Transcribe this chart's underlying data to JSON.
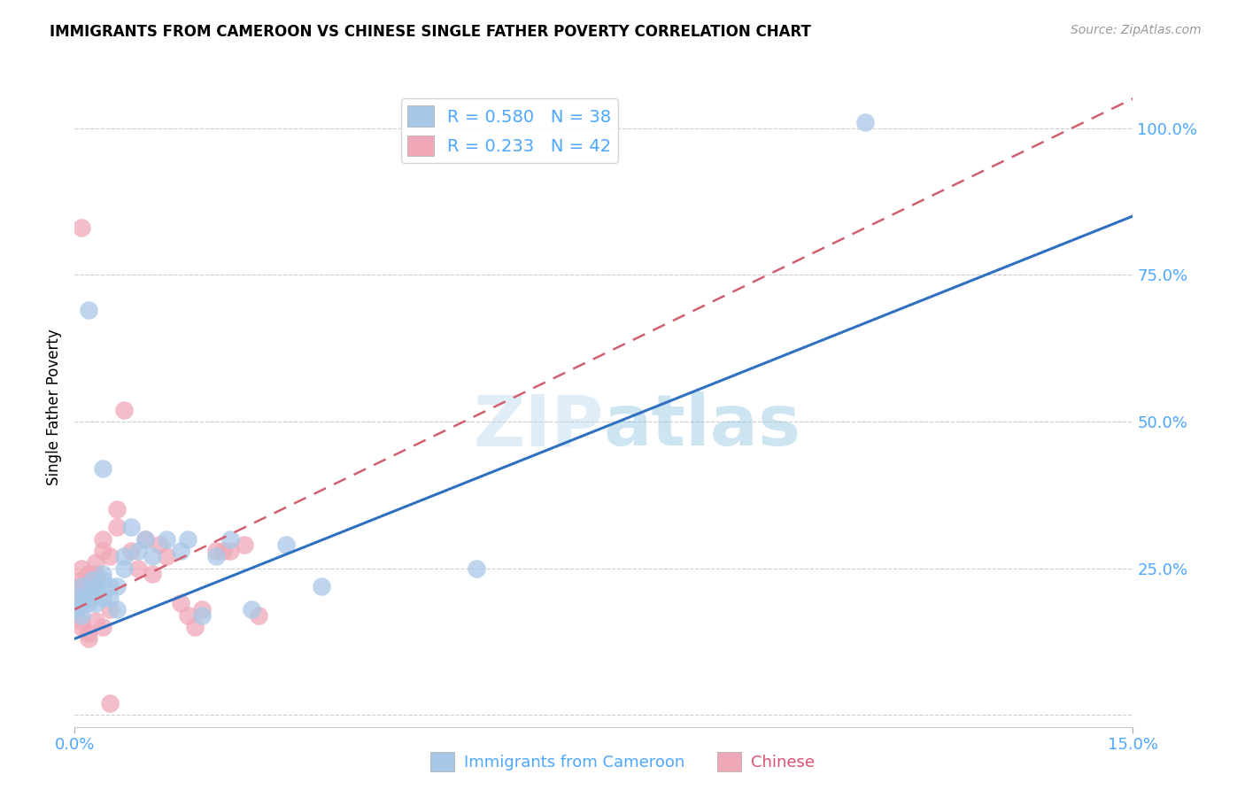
{
  "title": "IMMIGRANTS FROM CAMEROON VS CHINESE SINGLE FATHER POVERTY CORRELATION CHART",
  "source": "Source: ZipAtlas.com",
  "xlim": [
    0.0,
    0.15
  ],
  "ylim": [
    -0.02,
    1.07
  ],
  "ylabel": "Single Father Poverty",
  "watermark": "ZIPatlas",
  "title_fontsize": 12,
  "axis_color": "#4da6ff",
  "scatter_blue_color": "#a8c8e8",
  "scatter_pink_color": "#f0a8b8",
  "line_blue_color": "#3070c0",
  "line_pink_color": "#d06070",
  "blue_line_intercept": 0.13,
  "blue_line_slope": 4.8,
  "pink_line_intercept": 0.18,
  "pink_line_slope": 5.8,
  "blue_x": [
    0.0003,
    0.0005,
    0.0008,
    0.001,
    0.001,
    0.0015,
    0.002,
    0.002,
    0.0025,
    0.003,
    0.003,
    0.003,
    0.004,
    0.004,
    0.004,
    0.005,
    0.005,
    0.006,
    0.006,
    0.007,
    0.007,
    0.008,
    0.009,
    0.01,
    0.011,
    0.013,
    0.015,
    0.016,
    0.018,
    0.02,
    0.022,
    0.025,
    0.03,
    0.035,
    0.057,
    0.112,
    0.002,
    0.004
  ],
  "blue_y": [
    0.18,
    0.2,
    0.19,
    0.17,
    0.22,
    0.2,
    0.19,
    0.21,
    0.23,
    0.19,
    0.22,
    0.21,
    0.2,
    0.23,
    0.24,
    0.22,
    0.2,
    0.22,
    0.18,
    0.25,
    0.27,
    0.32,
    0.28,
    0.3,
    0.27,
    0.3,
    0.28,
    0.3,
    0.17,
    0.27,
    0.3,
    0.18,
    0.29,
    0.22,
    0.25,
    1.01,
    0.69,
    0.42
  ],
  "pink_x": [
    0.0002,
    0.0003,
    0.0005,
    0.001,
    0.001,
    0.001,
    0.002,
    0.002,
    0.002,
    0.003,
    0.003,
    0.003,
    0.004,
    0.004,
    0.005,
    0.005,
    0.006,
    0.006,
    0.007,
    0.008,
    0.009,
    0.01,
    0.011,
    0.012,
    0.013,
    0.015,
    0.016,
    0.017,
    0.018,
    0.02,
    0.021,
    0.022,
    0.024,
    0.026,
    0.001,
    0.001,
    0.002,
    0.002,
    0.003,
    0.004,
    0.005,
    0.001
  ],
  "pink_y": [
    0.2,
    0.19,
    0.22,
    0.21,
    0.23,
    0.25,
    0.24,
    0.22,
    0.2,
    0.26,
    0.24,
    0.23,
    0.28,
    0.3,
    0.27,
    0.18,
    0.32,
    0.35,
    0.52,
    0.28,
    0.25,
    0.3,
    0.24,
    0.29,
    0.27,
    0.19,
    0.17,
    0.15,
    0.18,
    0.28,
    0.28,
    0.28,
    0.29,
    0.17,
    0.16,
    0.15,
    0.14,
    0.13,
    0.16,
    0.15,
    0.02,
    0.83
  ]
}
